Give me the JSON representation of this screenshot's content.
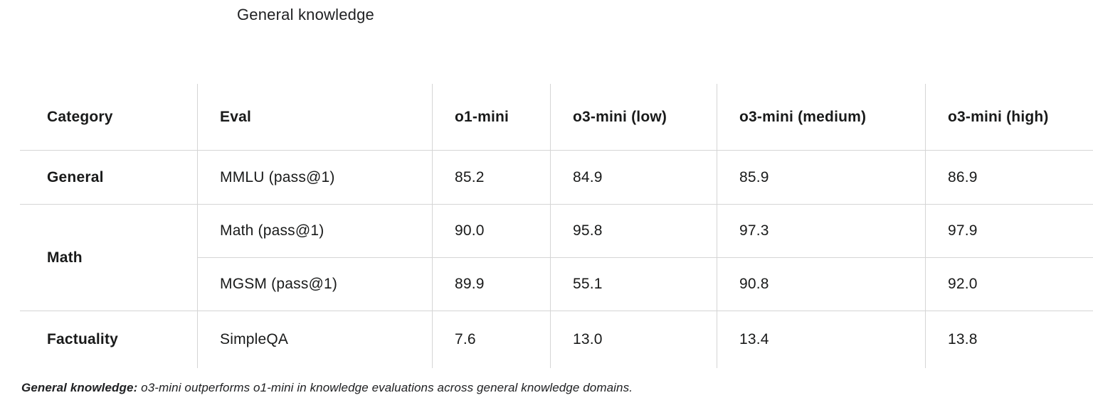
{
  "page": {
    "background": "#ffffff",
    "text_color": "#191a1a",
    "grid_line_color": "#d5d5d5"
  },
  "chart_data": {
    "type": "table",
    "title": "General knowledge",
    "columns": [
      "Category",
      "Eval",
      "o1-mini",
      "o3-mini (low)",
      "o3-mini (medium)",
      "o3-mini (high)"
    ],
    "rows": [
      [
        "General",
        "MMLU (pass@1)",
        "85.2",
        "84.9",
        "85.9",
        "86.9"
      ],
      [
        "Math",
        "Math (pass@1)",
        "90.0",
        "95.8",
        "97.3",
        "97.9"
      ],
      [
        "",
        "MGSM (pass@1)",
        "89.9",
        "55.1",
        "90.8",
        "92.0"
      ],
      [
        "Factuality",
        "SimpleQA",
        "7.6",
        "13.0",
        "13.4",
        "13.8"
      ]
    ],
    "category_groups": [
      {
        "category": "General",
        "evals": [
          "MMLU (pass@1)"
        ]
      },
      {
        "category": "Math",
        "evals": [
          "Math (pass@1)",
          "MGSM (pass@1)"
        ]
      },
      {
        "category": "Factuality",
        "evals": [
          "SimpleQA"
        ]
      }
    ],
    "layout": {
      "legend": "none",
      "grid": "partial-lines",
      "header_separator": true,
      "bottom_border": false
    },
    "caption_bold": "General knowledge:",
    "caption_text": "o3-mini outperforms o1-mini in knowledge evaluations across general knowledge domains."
  }
}
